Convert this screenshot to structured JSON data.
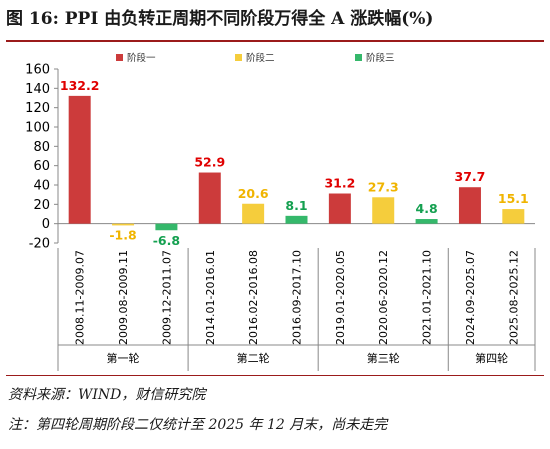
{
  "title": "图 16: PPI 由负转正周期不同阶段万得全 A 涨跌幅(%)",
  "source": "资料来源：WIND，财信研究院",
  "note": "注：第四轮周期阶段二仅统计至 2025 年 12 月末，尚未走完",
  "colors": {
    "stage1": "#cc3b3b",
    "stage2": "#f5cd3c",
    "stage3": "#35b86b",
    "label_red": "#e00000",
    "label_yellow": "#f0b400",
    "label_green": "#14a050",
    "axis": "#888888"
  },
  "chart_data": {
    "type": "bar",
    "ylim": [
      -20,
      160
    ],
    "yticks": [
      "-20",
      "0",
      "20",
      "40",
      "60",
      "80",
      "100",
      "120",
      "140",
      "160"
    ],
    "grid": false,
    "legend_position": "top",
    "legend": [
      {
        "name": "阶段一",
        "series": 0
      },
      {
        "name": "阶段二",
        "series": 1
      },
      {
        "name": "阶段三",
        "series": 2
      }
    ],
    "groups": [
      {
        "label": "第一轮",
        "bars": [
          {
            "period": "2008.11-2009.07",
            "series": 0,
            "value": 132.2,
            "label": "132.2"
          },
          {
            "period": "2009.08-2009.11",
            "series": 1,
            "value": -1.8,
            "label": "-1.8"
          },
          {
            "period": "2009.12-2011.07",
            "series": 2,
            "value": -6.8,
            "label": "-6.8"
          }
        ]
      },
      {
        "label": "第二轮",
        "bars": [
          {
            "period": "2014.01-2016.01",
            "series": 0,
            "value": 52.9,
            "label": "52.9"
          },
          {
            "period": "2016.02-2016.08",
            "series": 1,
            "value": 20.6,
            "label": "20.6"
          },
          {
            "period": "2016.09-2017.10",
            "series": 2,
            "value": 8.1,
            "label": "8.1"
          }
        ]
      },
      {
        "label": "第三轮",
        "bars": [
          {
            "period": "2019.01-2020.05",
            "series": 0,
            "value": 31.2,
            "label": "31.2"
          },
          {
            "period": "2020.06-2020.12",
            "series": 1,
            "value": 27.3,
            "label": "27.3"
          },
          {
            "period": "2021.01-2021.10",
            "series": 2,
            "value": 4.8,
            "label": "4.8"
          }
        ]
      },
      {
        "label": "第四轮",
        "bars": [
          {
            "period": "2024.09-2025.07",
            "series": 0,
            "value": 37.7,
            "label": "37.7"
          },
          {
            "period": "2025.08-2025.12",
            "series": 1,
            "value": 15.1,
            "label": "15.1"
          }
        ]
      }
    ]
  }
}
